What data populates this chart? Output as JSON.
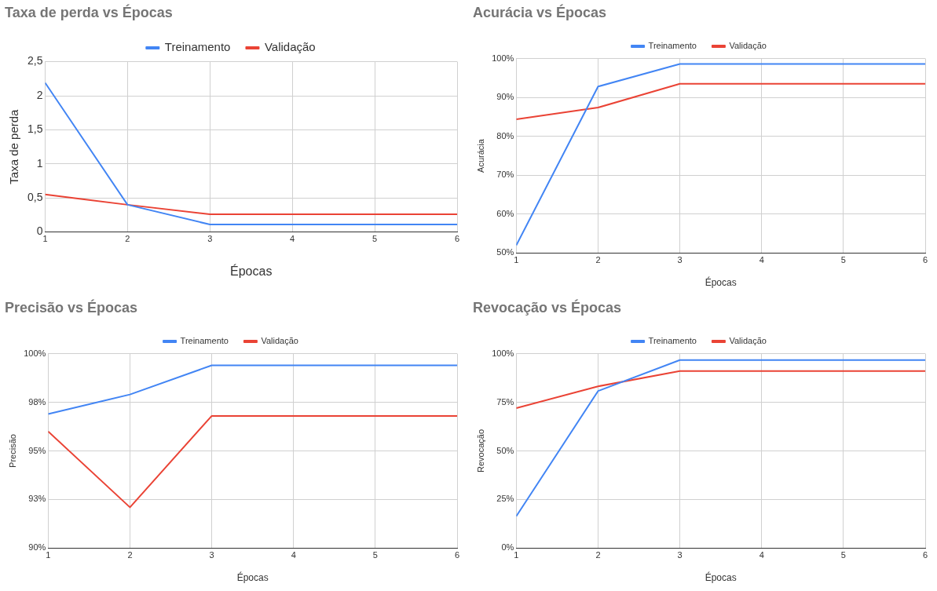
{
  "chart_data": [
    {
      "type": "line",
      "title": "Taxa de perda vs Épocas",
      "xlabel": "Épocas",
      "ylabel": "Taxa de perda",
      "x": [
        1,
        2,
        3,
        4,
        5,
        6
      ],
      "xlim": [
        1,
        6
      ],
      "xticks": [
        1,
        2,
        3,
        4,
        5,
        6
      ],
      "ylim": [
        0,
        2.5
      ],
      "yticks": [
        0,
        {
          "value": 0.5,
          "label": "0,5"
        },
        1,
        {
          "value": 1.5,
          "label": "1,5"
        },
        2,
        {
          "value": 2.5,
          "label": "2,5"
        }
      ],
      "grid": true,
      "legend": "top",
      "marker": "none",
      "series": [
        {
          "name": "Treinamento",
          "color": "#4285f4",
          "values": [
            2.19,
            0.4,
            0.11,
            0.11,
            0.11,
            0.11
          ]
        },
        {
          "name": "Validação",
          "color": "#ea4335",
          "values": [
            0.55,
            0.4,
            0.26,
            0.26,
            0.26,
            0.26
          ]
        }
      ]
    },
    {
      "type": "line",
      "title": "Acurácia vs Épocas",
      "xlabel": "Épocas",
      "ylabel": "Acurácia",
      "x": [
        1,
        2,
        3,
        4,
        5,
        6
      ],
      "xlim": [
        1,
        6
      ],
      "xticks": [
        1,
        2,
        3,
        4,
        5,
        6
      ],
      "ylim": [
        50,
        100
      ],
      "yticks": [
        {
          "value": 50,
          "label": "50%"
        },
        {
          "value": 60,
          "label": "60%"
        },
        {
          "value": 70,
          "label": "70%"
        },
        {
          "value": 80,
          "label": "80%"
        },
        {
          "value": 90,
          "label": "90%"
        },
        {
          "value": 100,
          "label": "100%"
        }
      ],
      "grid": true,
      "legend": "top",
      "marker": "none",
      "series": [
        {
          "name": "Treinamento",
          "color": "#4285f4",
          "values": [
            52,
            92.8,
            98.6,
            98.6,
            98.6,
            98.6
          ]
        },
        {
          "name": "Validação",
          "color": "#ea4335",
          "values": [
            84.4,
            87.4,
            93.5,
            93.5,
            93.5,
            93.5
          ]
        }
      ]
    },
    {
      "type": "line",
      "title": "Precisão vs Épocas",
      "xlabel": "Épocas",
      "ylabel": "Precisão",
      "x": [
        1,
        2,
        3,
        4,
        5,
        6
      ],
      "xlim": [
        1,
        6
      ],
      "xticks": [
        1,
        2,
        3,
        4,
        5,
        6
      ],
      "ylim": [
        90,
        100
      ],
      "yticks": [
        {
          "value": 90,
          "label": "90%"
        },
        {
          "value": 92.5,
          "label": "93%"
        },
        {
          "value": 95,
          "label": "95%"
        },
        {
          "value": 97.5,
          "label": "98%"
        },
        {
          "value": 100,
          "label": "100%"
        }
      ],
      "grid": true,
      "legend": "top",
      "marker": "none",
      "series": [
        {
          "name": "Treinamento",
          "color": "#4285f4",
          "values": [
            96.9,
            97.9,
            99.4,
            99.4,
            99.4,
            99.4
          ]
        },
        {
          "name": "Validação",
          "color": "#ea4335",
          "values": [
            96,
            92.1,
            96.8,
            96.8,
            96.8,
            96.8
          ]
        }
      ]
    },
    {
      "type": "line",
      "title": "Revocação vs Épocas",
      "xlabel": "Épocas",
      "ylabel": "Revocação",
      "x": [
        1,
        2,
        3,
        4,
        5,
        6
      ],
      "xlim": [
        1,
        6
      ],
      "xticks": [
        1,
        2,
        3,
        4,
        5,
        6
      ],
      "ylim": [
        0,
        100
      ],
      "yticks": [
        {
          "value": 0,
          "label": "0%"
        },
        {
          "value": 25,
          "label": "25%"
        },
        {
          "value": 50,
          "label": "50%"
        },
        {
          "value": 75,
          "label": "75%"
        },
        {
          "value": 100,
          "label": "100%"
        }
      ],
      "grid": true,
      "legend": "top",
      "marker": "none",
      "series": [
        {
          "name": "Treinamento",
          "color": "#4285f4",
          "values": [
            16.4,
            80.8,
            96.7,
            96.7,
            96.7,
            96.7
          ]
        },
        {
          "name": "Validação",
          "color": "#ea4335",
          "values": [
            72,
            83.2,
            91.1,
            91.1,
            91.1,
            91.1
          ]
        }
      ]
    }
  ]
}
